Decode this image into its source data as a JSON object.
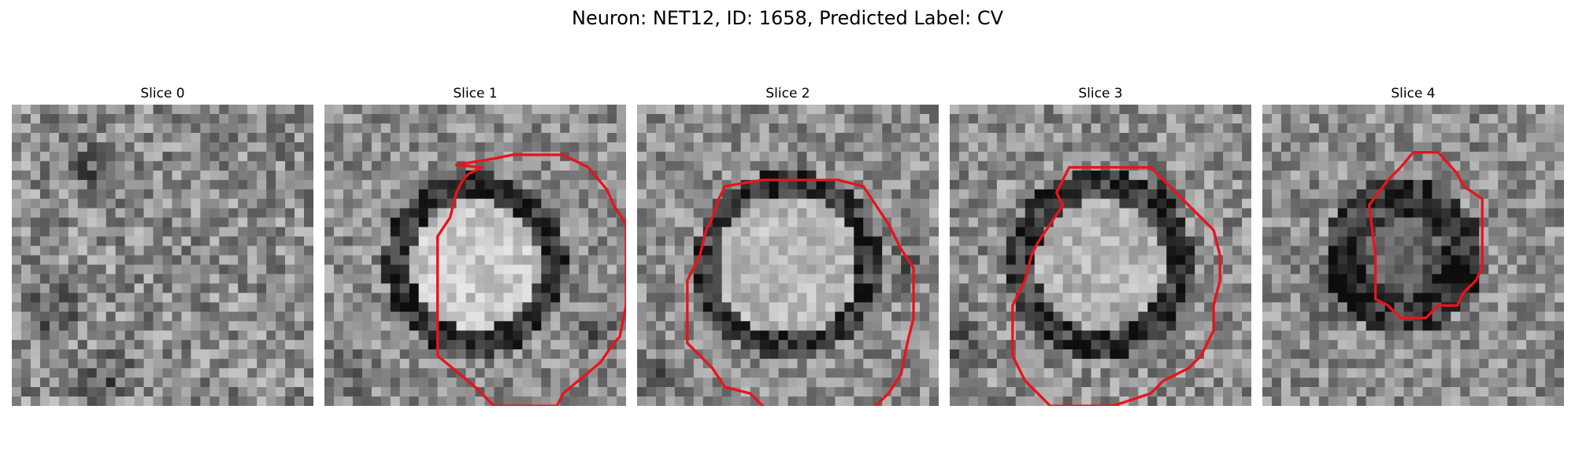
{
  "figure": {
    "title": "Neuron: NET12, ID: 1658, Predicted Label: CV"
  },
  "panels": [
    {
      "title": "Slice 0",
      "has_contour": false
    },
    {
      "title": "Slice 1",
      "has_contour": true
    },
    {
      "title": "Slice 2",
      "has_contour": true
    },
    {
      "title": "Slice 3",
      "has_contour": true
    },
    {
      "title": "Slice 4",
      "has_contour": true
    }
  ],
  "colors": {
    "contour": "#e8141b",
    "background": "#ffffff"
  }
}
